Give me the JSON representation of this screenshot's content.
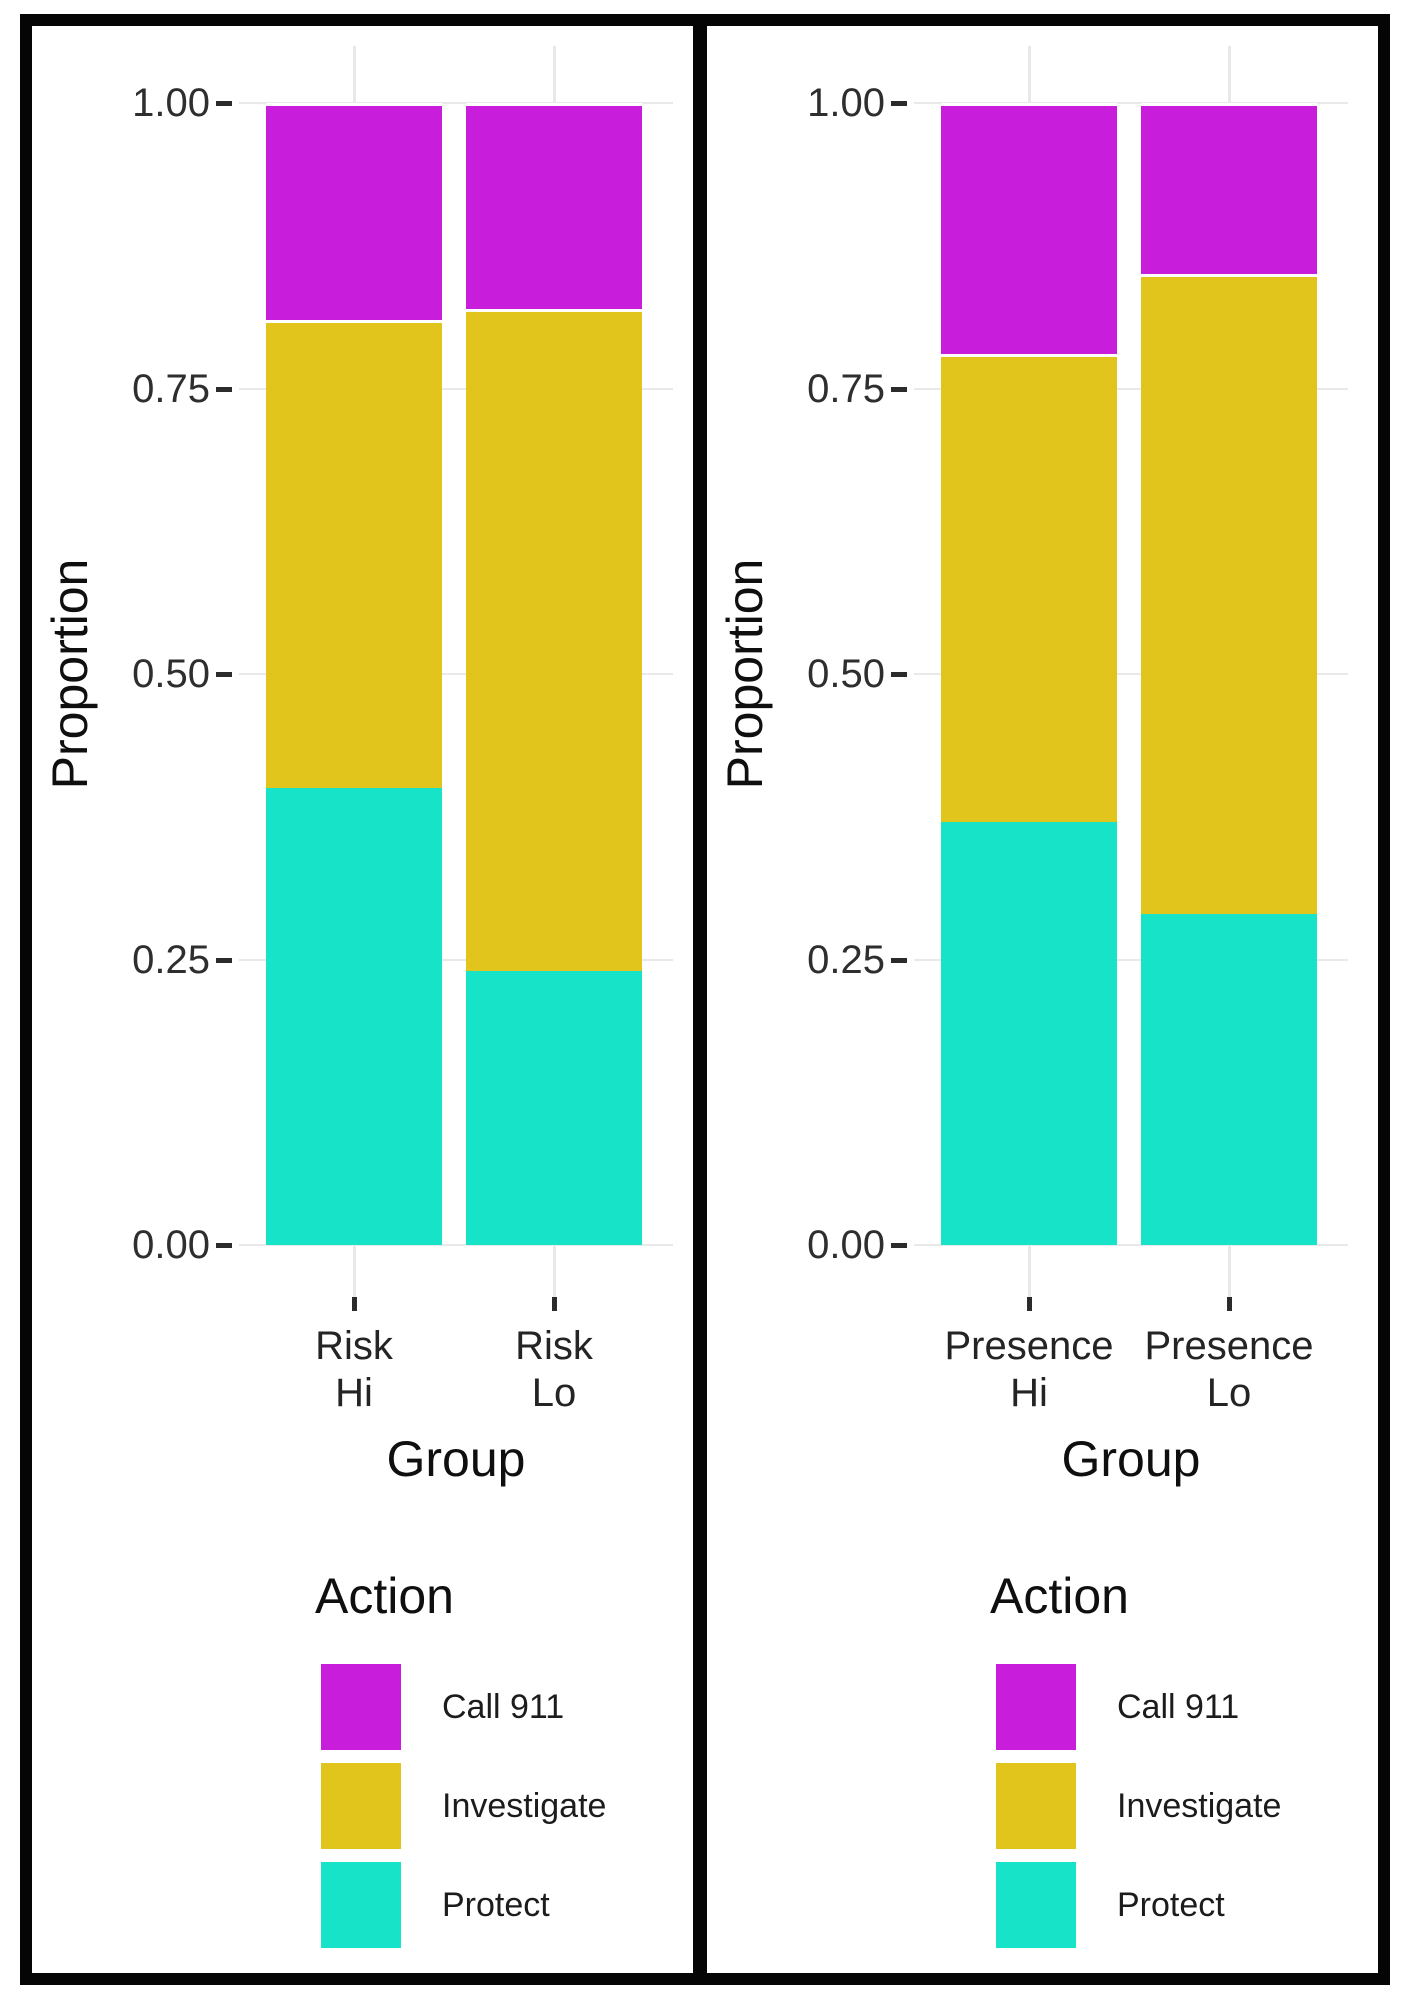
{
  "figure": {
    "border_color": "#050505",
    "background": "#ffffff",
    "gridline_color": "#e9e9e9"
  },
  "chart_data": [
    {
      "type": "bar",
      "stacked": true,
      "title": "",
      "xlabel": "Group",
      "ylabel": "Proportion",
      "ylim": [
        0,
        1
      ],
      "grid": true,
      "legend_position": "bottom",
      "legend_title": "Action",
      "yticks": [
        {
          "value": 1.0,
          "label": "1.00"
        },
        {
          "value": 0.75,
          "label": "0.75"
        },
        {
          "value": 0.5,
          "label": "0.50"
        },
        {
          "value": 0.25,
          "label": "0.25"
        },
        {
          "value": 0.0,
          "label": "0.00"
        }
      ],
      "categories": [
        "Risk Hi",
        "Risk Lo"
      ],
      "category_labels": [
        [
          "Risk",
          "Hi"
        ],
        [
          "Risk",
          "Lo"
        ]
      ],
      "series": [
        {
          "name": "Protect",
          "color": "#17e3c9",
          "values": [
            0.4,
            0.24
          ]
        },
        {
          "name": "Investigate",
          "color": "#e1c51c",
          "values": [
            0.41,
            0.58
          ]
        },
        {
          "name": "Call 911",
          "color": "#c81ddb",
          "values": [
            0.19,
            0.18
          ]
        }
      ],
      "legend_items": [
        {
          "label": "Call 911",
          "color": "#c81ddb"
        },
        {
          "label": "Investigate",
          "color": "#e1c51c"
        },
        {
          "label": "Protect",
          "color": "#17e3c9"
        }
      ]
    },
    {
      "type": "bar",
      "stacked": true,
      "title": "",
      "xlabel": "Group",
      "ylabel": "Proportion",
      "ylim": [
        0,
        1
      ],
      "grid": true,
      "legend_position": "bottom",
      "legend_title": "Action",
      "yticks": [
        {
          "value": 1.0,
          "label": "1.00"
        },
        {
          "value": 0.75,
          "label": "0.75"
        },
        {
          "value": 0.5,
          "label": "0.50"
        },
        {
          "value": 0.25,
          "label": "0.25"
        },
        {
          "value": 0.0,
          "label": "0.00"
        }
      ],
      "categories": [
        "Presence Hi",
        "Presence Lo"
      ],
      "category_labels": [
        [
          "Presence",
          "Hi"
        ],
        [
          "Presence",
          "Lo"
        ]
      ],
      "series": [
        {
          "name": "Protect",
          "color": "#17e3c9",
          "values": [
            0.37,
            0.29
          ]
        },
        {
          "name": "Investigate",
          "color": "#e1c51c",
          "values": [
            0.41,
            0.56
          ]
        },
        {
          "name": "Call 911",
          "color": "#c81ddb",
          "values": [
            0.22,
            0.15
          ]
        }
      ],
      "legend_items": [
        {
          "label": "Call 911",
          "color": "#c81ddb"
        },
        {
          "label": "Investigate",
          "color": "#e1c51c"
        },
        {
          "label": "Protect",
          "color": "#17e3c9"
        }
      ]
    }
  ]
}
